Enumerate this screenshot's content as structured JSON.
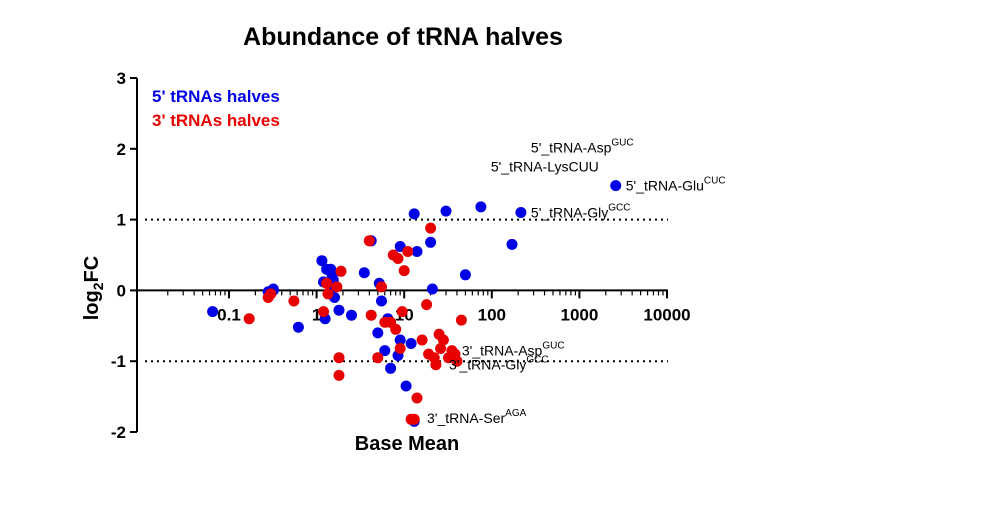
{
  "chart_data": {
    "type": "scatter",
    "title": "Abundance of tRNA halves",
    "xlabel": "Base Mean",
    "ylabel": "log",
    "ylabel_sub": "2",
    "ylabel_suffix": "FC",
    "xscale": "log",
    "xlim": [
      0.05,
      12000
    ],
    "ylim": [
      -2,
      3
    ],
    "x_ticks": [
      0.1,
      1,
      10,
      100,
      1000,
      10000
    ],
    "x_tick_labels": [
      "0.1",
      "1",
      "10",
      "100",
      "1000",
      "10000"
    ],
    "y_ticks": [
      -2,
      -1,
      0,
      1,
      2,
      3
    ],
    "y_tick_labels": [
      "-2",
      "-1",
      "0",
      "1",
      "2",
      "3"
    ],
    "reference_lines": [
      1,
      -1
    ],
    "legend_position": "top-left",
    "series": [
      {
        "name": "5' tRNAs halves",
        "color": "#0000e6",
        "x": [
          0.065,
          0.28,
          0.32,
          0.32,
          0.62,
          1.15,
          1.2,
          1.3,
          1.25,
          1.45,
          1.5,
          1.55,
          1.6,
          1.6,
          1.8,
          2.5,
          3.5,
          4.2,
          5,
          5.2,
          5.5,
          6,
          6.5,
          7,
          8.5,
          9,
          9,
          10.5,
          12,
          13,
          13,
          14,
          20,
          21,
          30,
          50,
          75,
          170,
          215
        ],
        "y": [
          -0.3,
          -0.02,
          0.0,
          0.02,
          -0.52,
          0.42,
          0.12,
          0.3,
          -0.4,
          0.3,
          0.22,
          0.15,
          0.05,
          -0.1,
          -0.28,
          -0.35,
          0.25,
          0.7,
          -0.6,
          0.1,
          -0.15,
          -0.85,
          -0.4,
          -1.1,
          -0.92,
          -0.7,
          0.62,
          -1.35,
          -0.75,
          -1.85,
          1.08,
          0.55,
          0.68,
          0.02,
          1.12,
          0.22,
          1.18,
          0.65,
          1.1
        ]
      },
      {
        "name": "3' tRNAs halves",
        "color": "#e80000",
        "x": [
          0.17,
          0.28,
          0.3,
          0.55,
          1.2,
          1.3,
          1.35,
          1.7,
          1.8,
          1.8,
          1.9,
          4,
          4.2,
          5,
          5.5,
          6,
          7,
          7.5,
          8,
          8.5,
          9,
          9.5,
          10,
          11,
          12,
          13,
          14,
          16,
          18,
          19,
          20,
          22,
          23,
          25,
          26,
          28,
          32,
          35,
          38,
          40,
          45
        ],
        "y": [
          -0.4,
          -0.1,
          -0.05,
          -0.15,
          -0.3,
          0.1,
          -0.05,
          0.05,
          -0.95,
          -1.2,
          0.27,
          0.7,
          -0.35,
          -0.95,
          0.05,
          -0.45,
          -0.45,
          0.5,
          -0.55,
          0.45,
          -0.82,
          -0.3,
          0.28,
          0.55,
          -1.82,
          -1.82,
          -1.52,
          -0.7,
          -0.2,
          -0.9,
          0.88,
          -0.95,
          -1.05,
          -0.62,
          -0.82,
          -0.7,
          -0.95,
          -0.85,
          -0.9,
          -1.0,
          -0.42
        ]
      }
    ],
    "annotations": [
      {
        "x": 215,
        "y": 2.02,
        "base": "5'_tRNA-Asp",
        "sup": "GUC"
      },
      {
        "x": 75,
        "y": 1.75,
        "base": "5'_tRNA-LysCUU",
        "sup": ""
      },
      {
        "x": 2600,
        "y": 1.48,
        "base": "5'_tRNA-Glu",
        "sup": "CUC"
      },
      {
        "x": 215,
        "y": 1.1,
        "base": "5'_tRNA-Gly",
        "sup": "GCC"
      },
      {
        "x": 35,
        "y": -0.85,
        "base": "3'_tRNA-Asp",
        "sup": "GUC"
      },
      {
        "x": 25,
        "y": -1.05,
        "base": "3'_tRNA-Gly",
        "sup": "GCC"
      },
      {
        "x": 14,
        "y": -1.8,
        "base": "3'_tRNA-Ser",
        "sup": "AGA"
      }
    ]
  }
}
